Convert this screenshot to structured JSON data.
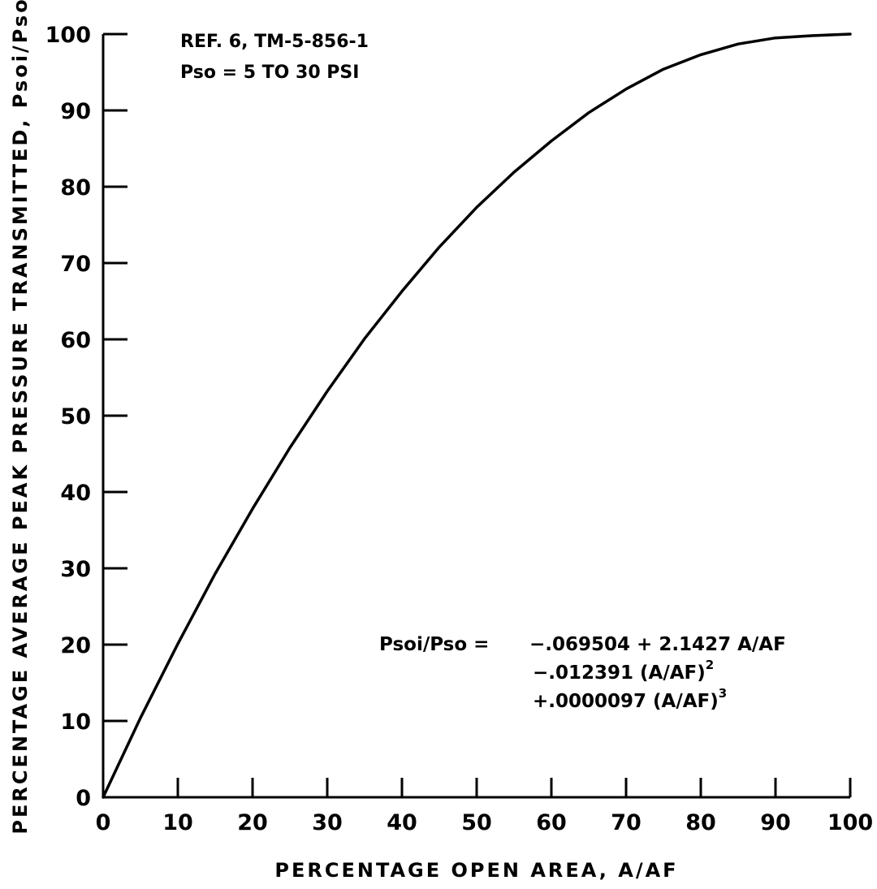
{
  "chart_data": {
    "type": "line",
    "title": "",
    "xlabel": "PERCENTAGE OPEN AREA, A/AF",
    "ylabel": "PERCENTAGE AVERAGE PEAK PRESSURE TRANSMITTED, Psoi/Pso",
    "xlim": [
      0,
      100
    ],
    "ylim": [
      0,
      100
    ],
    "x_ticks": [
      "0",
      "10",
      "20",
      "30",
      "40",
      "50",
      "60",
      "70",
      "80",
      "90",
      "100"
    ],
    "y_ticks": [
      "0",
      "10",
      "20",
      "30",
      "40",
      "50",
      "60",
      "70",
      "80",
      "90",
      "100"
    ],
    "grid": false,
    "legend": "none",
    "series": [
      {
        "x": [
          0,
          5,
          10,
          15,
          20,
          25,
          30,
          35,
          40,
          45,
          50,
          55,
          60,
          65,
          70,
          75,
          80,
          85,
          90,
          95,
          100
        ],
        "y": [
          0,
          10.4,
          20.1,
          29.3,
          37.8,
          45.8,
          53.2,
          60.1,
          66.3,
          72.1,
          77.3,
          81.9,
          86.0,
          89.7,
          92.8,
          95.4,
          97.3,
          98.7,
          99.5,
          99.8,
          100.0
        ]
      }
    ],
    "annotations": {
      "ref_line1": "REF. 6, TM-5-856-1",
      "ref_line2": "Pso = 5 TO 30 PSI",
      "eq_lhs": "Psoi/Pso =",
      "eq_line1": "−.069504 + 2.1427  A/AF",
      "eq_line2": "−.012391 (A/AF)",
      "eq_line2_exp": "2",
      "eq_line3": "+.0000097 (A/AF)",
      "eq_line3_exp": "3"
    }
  }
}
